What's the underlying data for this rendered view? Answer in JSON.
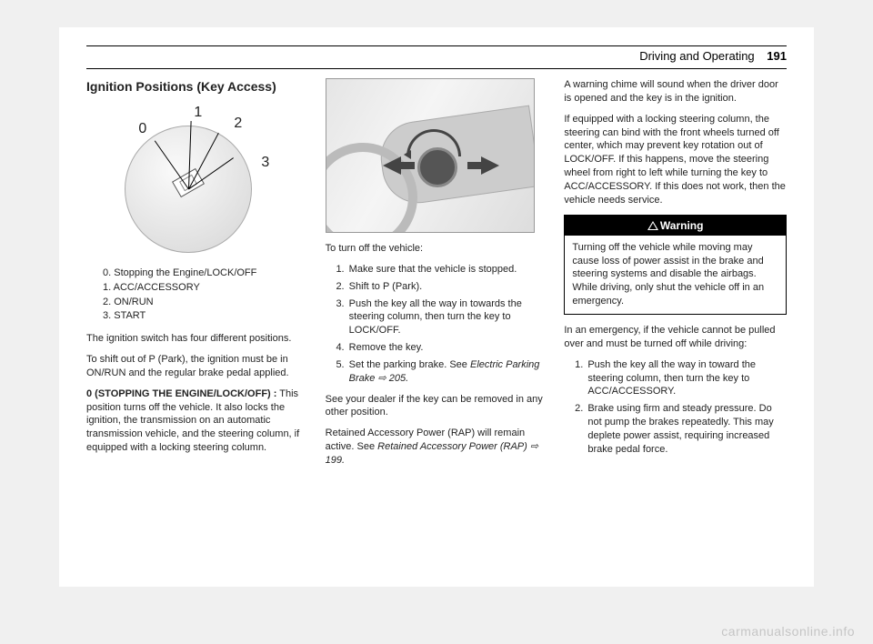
{
  "header": {
    "chapter": "Driving and Operating",
    "page_number": "191"
  },
  "col1": {
    "heading": "Ignition Positions (Key Access)",
    "diagram": {
      "type": "labeled-dial",
      "labels": [
        "0",
        "1",
        "2",
        "3"
      ],
      "dial_fill_light": "#fafafa",
      "dial_fill_dark": "#d5d5d5",
      "line_color": "#000000"
    },
    "legend": [
      "0. Stopping the Engine/LOCK/OFF",
      "1. ACC/ACCESSORY",
      "2. ON/RUN",
      "3. START"
    ],
    "p1": "The ignition switch has four different positions.",
    "p2": "To shift out of P (Park), the ignition must be in ON/RUN and the regular brake pedal applied.",
    "p3_bold": "0 (STOPPING THE ENGINE/LOCK/OFF) :",
    "p3_rest": " This position turns off the vehicle. It also locks the ignition, the transmission on an automatic transmission vehicle, and the steering column, if equipped with a locking steering column."
  },
  "col2": {
    "illustration": {
      "type": "line-art",
      "bg_gradient": [
        "#e5e5e5",
        "#f5f5f5",
        "#dddddd"
      ],
      "arrow_color": "#444444"
    },
    "intro": "To turn off the vehicle:",
    "steps": [
      "Make sure that the vehicle is stopped.",
      "Shift to P (Park).",
      "Push the key all the way in towards the steering column, then turn the key to LOCK/OFF.",
      "Remove the key.",
      "Set the parking brake. See "
    ],
    "step5_link": "Electric Parking Brake",
    "step5_ref": " ⇨ 205.",
    "p_after1": "See your dealer if the key can be removed in any other position.",
    "p_after2a": "Retained Accessory Power (RAP) will remain active. See ",
    "p_after2_link": "Retained Accessory Power (RAP)",
    "p_after2_ref": " ⇨ 199."
  },
  "col3": {
    "p1": "A warning chime will sound when the driver door is opened and the key is in the ignition.",
    "p2": "If equipped with a locking steering column, the steering can bind with the front wheels turned off center, which may prevent key rotation out of LOCK/OFF. If this happens, move the steering wheel from right to left while turning the key to ACC/ACCESSORY. If this does not work, then the vehicle needs service.",
    "warning": {
      "title": "Warning",
      "body": "Turning off the vehicle while moving may cause loss of power assist in the brake and steering systems and disable the airbags. While driving, only shut the vehicle off in an emergency."
    },
    "p3": "In an emergency, if the vehicle cannot be pulled over and must be turned off while driving:",
    "steps": [
      "Push the key all the way in toward the steering column, then turn the key to ACC/ACCESSORY.",
      "Brake using firm and steady pressure. Do not pump the brakes repeatedly. This may deplete power assist, requiring increased brake pedal force."
    ]
  },
  "watermark": "carmanualsonline.info",
  "colors": {
    "page_bg": "#ffffff",
    "body_bg": "#f0f0f0",
    "text": "#222222",
    "rule": "#000000",
    "warn_bg": "#000000",
    "warn_fg": "#ffffff"
  }
}
